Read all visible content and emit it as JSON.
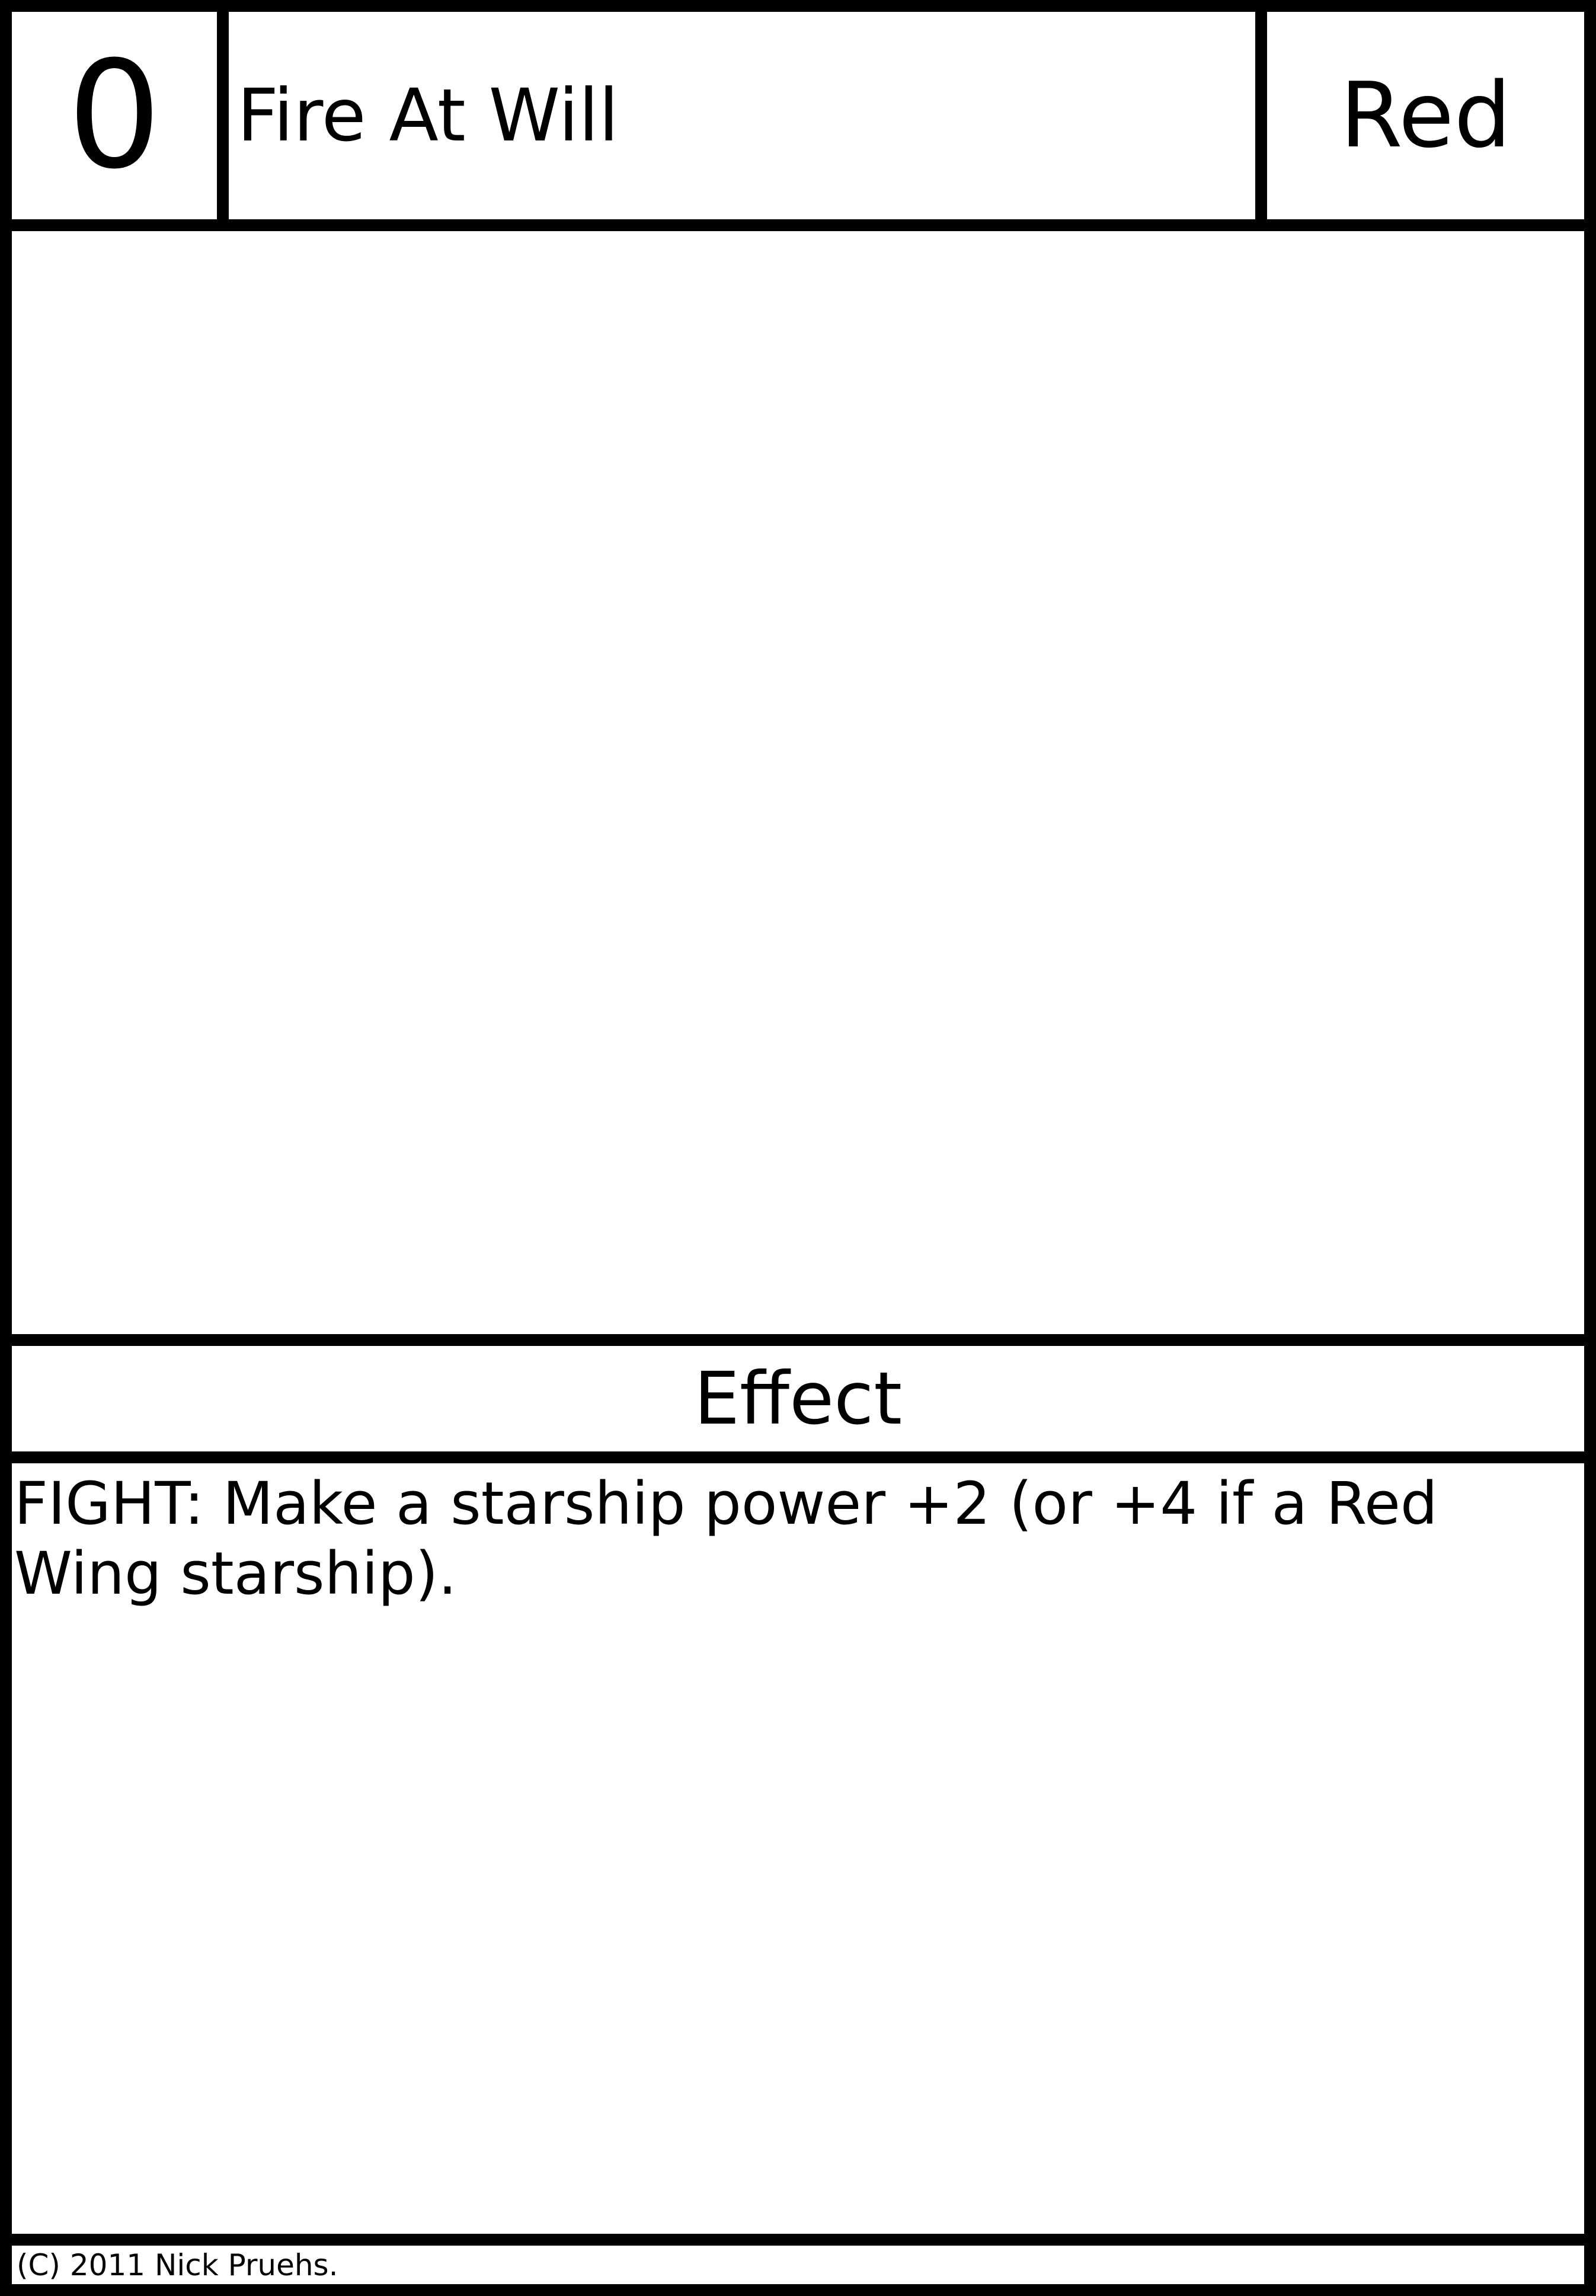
{
  "card": {
    "cost": "0",
    "title": "Fire At Will",
    "color": "Red",
    "effect_heading": "Effect",
    "effect_text": "FIGHT: Make a starship power +2 (or +4 if a Red Wing starship).",
    "copyright": "(C) 2011 Nick Pruehs."
  }
}
